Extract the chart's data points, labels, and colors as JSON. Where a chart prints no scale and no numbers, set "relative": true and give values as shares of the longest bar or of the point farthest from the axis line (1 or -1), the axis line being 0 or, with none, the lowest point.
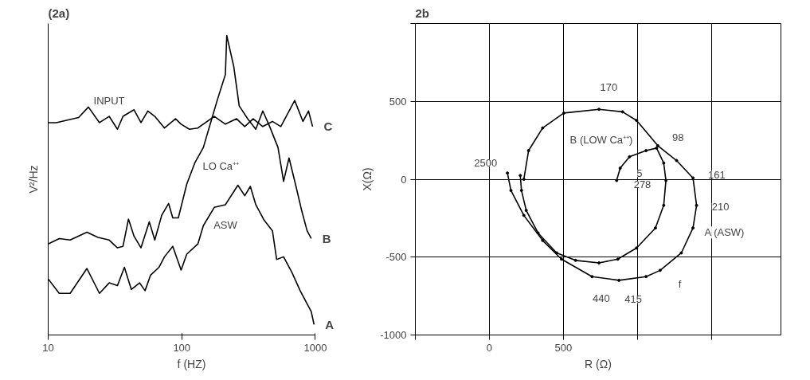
{
  "chart_data": [
    {
      "type": "line",
      "title": "(2a)",
      "xlabel": "f (HZ)",
      "ylabel": "V²/Hz",
      "relative": true,
      "log": "x",
      "xlim": [
        10,
        1000
      ],
      "xticks": [
        10,
        100,
        1000
      ],
      "tick_labels": "x",
      "grid": false,
      "series": [
        {
          "name": "INPUT",
          "color": "#000000",
          "x": [
            10,
            11.5,
            16.9,
            20,
            24.2,
            28.6,
            33,
            36.3,
            43.9,
            49.5,
            55.7,
            62.8,
            74.2,
            89.8,
            98.8,
            114,
            132,
            175,
            212,
            257,
            296,
            342,
            404,
            477,
            551,
            700,
            807,
            888,
            953
          ],
          "values": [
            0.709,
            0.709,
            0.726,
            0.761,
            0.709,
            0.73,
            0.687,
            0.73,
            0.752,
            0.709,
            0.748,
            0.73,
            0.691,
            0.722,
            0.704,
            0.687,
            0.691,
            0.73,
            0.704,
            0.722,
            0.696,
            0.722,
            0.696,
            0.713,
            0.696,
            0.783,
            0.713,
            0.748,
            0.696
          ]
        },
        {
          "name": "LO Ca⁺⁺",
          "color": "#000000",
          "x": [
            10,
            12.1,
            14.6,
            19.5,
            23.6,
            28.6,
            33,
            36.3,
            39.9,
            43.9,
            49.5,
            57.1,
            62.8,
            70.8,
            79.7,
            85.6,
            94.2,
            109,
            125,
            145,
            159,
            184,
            212,
            217,
            245,
            269,
            311,
            358,
            404,
            455,
            525,
            578,
            635,
            716,
            788,
            867,
            931
          ],
          "values": [
            0.304,
            0.322,
            0.317,
            0.343,
            0.326,
            0.317,
            0.291,
            0.296,
            0.387,
            0.33,
            0.291,
            0.378,
            0.317,
            0.4,
            0.439,
            0.391,
            0.391,
            0.504,
            0.574,
            0.626,
            0.687,
            0.783,
            0.87,
            1,
            0.896,
            0.765,
            0.722,
            0.687,
            0.748,
            0.696,
            0.626,
            0.513,
            0.591,
            0.496,
            0.417,
            0.348,
            0.322
          ]
        },
        {
          "name": "ASW",
          "color": "#000000",
          "x": [
            10,
            12.1,
            14.6,
            19.5,
            24.2,
            28.6,
            33,
            37.2,
            41.9,
            48.3,
            53.1,
            58.4,
            67.5,
            74.2,
            85.6,
            98.8,
            109,
            132,
            145,
            175,
            212,
            263,
            296,
            326,
            358,
            414,
            477,
            513,
            578,
            667,
            769,
            867,
            931,
            977
          ],
          "values": [
            0.187,
            0.139,
            0.139,
            0.222,
            0.139,
            0.174,
            0.165,
            0.226,
            0.152,
            0.174,
            0.148,
            0.2,
            0.226,
            0.261,
            0.296,
            0.217,
            0.27,
            0.304,
            0.365,
            0.426,
            0.435,
            0.5,
            0.465,
            0.496,
            0.435,
            0.383,
            0.348,
            0.252,
            0.261,
            0.209,
            0.148,
            0.104,
            0.078,
            0.035
          ]
        }
      ],
      "annotations": [
        {
          "text": "C",
          "x": 953,
          "y": 0.696
        },
        {
          "text": "B",
          "x": 931,
          "y": 0.322
        },
        {
          "text": "A",
          "x": 977,
          "y": 0.035
        }
      ]
    },
    {
      "type": "line",
      "title": "2b",
      "xlabel": "R (Ω)",
      "ylabel": "X(Ω)",
      "xlim": [
        -500,
        1970
      ],
      "ylim": [
        -1000,
        1000
      ],
      "marker": "circle",
      "grid": true,
      "xticks": [
        {
          "value": -500,
          "label": null
        },
        0,
        500,
        {
          "value": 1000,
          "label": null
        },
        {
          "value": 1500,
          "label": null
        }
      ],
      "yticks": [
        -1000,
        -500,
        0,
        500,
        {
          "value": 1000,
          "label": null
        }
      ],
      "series": [
        {
          "name": "A (ASW)",
          "color": "#000000",
          "x": [
            233,
            265,
            360,
            503,
            741,
            900,
            995,
            1138,
            1265,
            1376,
            1400,
            1376,
            1297,
            1154,
            1059,
            876,
            694,
            487,
            360,
            233,
            146,
            122
          ],
          "values": [
            0,
            184,
            329,
            425,
            449,
            433,
            377,
            216,
            120,
            8,
            -168,
            -313,
            -473,
            -585,
            -625,
            -649,
            -625,
            -513,
            -393,
            -232,
            -72,
            40
          ]
        },
        {
          "name": "B (LOW Ca⁺⁺)",
          "color": "#000000",
          "x": [
            860,
            884,
            947,
            1059,
            1130,
            1178,
            1193,
            1178,
            1122,
            995,
            868,
            741,
            582,
            455,
            329,
            249,
            217,
            209
          ],
          "values": [
            -8,
            72,
            144,
            184,
            200,
            104,
            -8,
            -168,
            -313,
            -441,
            -513,
            -537,
            -521,
            -473,
            -345,
            -200,
            -72,
            24
          ]
        }
      ],
      "annotations": [
        {
          "text": "170",
          "x": 741,
          "y": 449
        },
        {
          "text": "98",
          "x": 1130,
          "y": 200
        },
        {
          "text": "161",
          "x": 1376,
          "y": 8
        },
        {
          "text": "210",
          "x": 1400,
          "y": -168
        },
        {
          "text": "278",
          "x": 1193,
          "y": -8
        },
        {
          "text": "415",
          "x": 876,
          "y": -649
        },
        {
          "text": "440",
          "x": 694,
          "y": -625
        },
        {
          "text": "2500",
          "x": 122,
          "y": 40
        },
        {
          "text": "5",
          "x": 860,
          "y": -8
        },
        {
          "text": "f",
          "x": 1154,
          "y": -585
        }
      ]
    }
  ]
}
